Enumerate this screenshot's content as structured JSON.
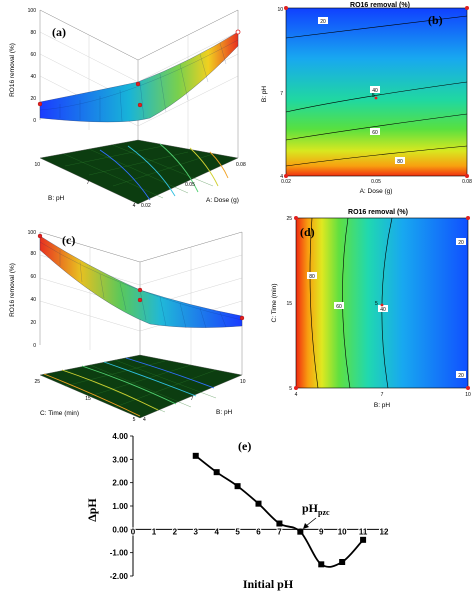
{
  "chart_data": [
    {
      "type": "surface",
      "panel_label": "(a)",
      "zlabel": "RO16 removal  (%)",
      "xlabel": "B: pH",
      "ylabel": "A: Dose (g)",
      "z_ticks": [
        "0",
        "20",
        "40",
        "60",
        "80",
        "100"
      ],
      "x_ticks": [
        "10",
        "7",
        "4"
      ],
      "y_ticks": [
        "0.08",
        "0.05",
        "0.02"
      ]
    },
    {
      "type": "contour",
      "panel_label": "(b)",
      "title": "RO16 removal  (%)",
      "xlabel": "A: Dose (g)",
      "ylabel": "B: pH",
      "x_ticks": [
        "0.02",
        "0.05",
        "0.08"
      ],
      "y_ticks": [
        "4",
        "7",
        "10"
      ],
      "contour_labels": [
        "20",
        "40",
        "60",
        "80"
      ],
      "center_label": "5"
    },
    {
      "type": "surface",
      "panel_label": "(c)",
      "zlabel": "RO16 removal  (%)",
      "xlabel": "C: Time (min)",
      "ylabel": "B: pH",
      "z_ticks": [
        "0",
        "20",
        "40",
        "60",
        "80",
        "100"
      ],
      "x_ticks": [
        "25",
        "15",
        "5"
      ],
      "y_ticks": [
        "4",
        "7",
        "10"
      ]
    },
    {
      "type": "contour",
      "panel_label": "(d)",
      "title": "RO16 removal  (%)",
      "xlabel": "B: pH",
      "ylabel": "C: Time (min)",
      "x_ticks": [
        "4",
        "7",
        "10"
      ],
      "y_ticks": [
        "5",
        "15",
        "25"
      ],
      "contour_labels": [
        "80",
        "60",
        "40",
        "20",
        "20"
      ],
      "center_label": "5"
    },
    {
      "type": "line",
      "panel_label": "(e)",
      "xlabel": "Initial pH",
      "ylabel": "ΔpH",
      "xlim": [
        0,
        12
      ],
      "ylim": [
        -2,
        4
      ],
      "x_ticks": [
        "0",
        "1",
        "2",
        "3",
        "4",
        "5",
        "6",
        "7",
        "8",
        "9",
        "10",
        "11",
        "12"
      ],
      "y_ticks": [
        "4.00",
        "3.00",
        "2.00",
        "1.00",
        "0.00",
        "-1.00",
        "-2.00"
      ],
      "annotation": "pH",
      "annotation_sub": "pzc",
      "series": [
        {
          "x": [
            3,
            4,
            5,
            6,
            7,
            8,
            9,
            10,
            11
          ],
          "y": [
            3.15,
            2.45,
            1.85,
            1.1,
            0.25,
            -0.1,
            -1.5,
            -1.4,
            -0.45
          ]
        }
      ]
    }
  ]
}
